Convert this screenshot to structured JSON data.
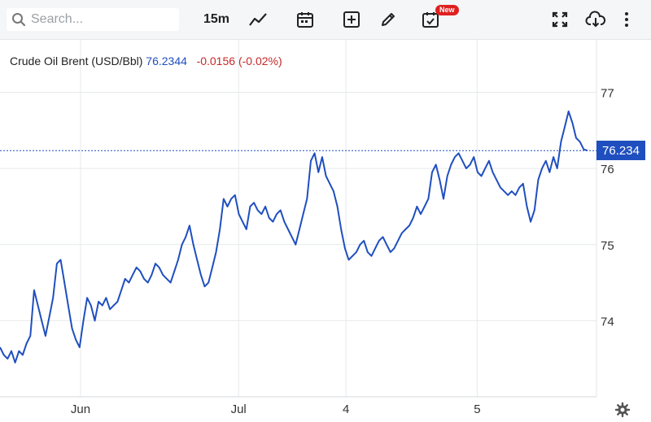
{
  "toolbar": {
    "search_placeholder": "Search...",
    "interval": "15m",
    "new_badge": "New",
    "icons": [
      "search-icon",
      "line-chart-icon",
      "calendar-icon",
      "plus-square-icon",
      "pencil-icon",
      "calendar-check-icon",
      "fullscreen-icon",
      "cloud-download-icon",
      "more-vertical-icon",
      "gear-icon"
    ]
  },
  "legend": {
    "name": "Crude Oil Brent (USD/Bbl)",
    "price": "76.2344",
    "change": "-0.0156",
    "change_pct": "(-0.02%)"
  },
  "price_tag": "76.234",
  "colors": {
    "line": "#1f4fbf",
    "price_tag": "#1f4fbf",
    "negative": "#c62828"
  },
  "chart_data": {
    "type": "line",
    "y_ticks": [
      "77",
      "76",
      "75",
      "74"
    ],
    "x_ticks": [
      "Jun",
      "Jul",
      "4",
      "5"
    ],
    "ylim": [
      73.0,
      77.7
    ],
    "grid": true,
    "series": [
      {
        "values": [
          73.65,
          73.55,
          73.5,
          73.6,
          73.45,
          73.6,
          73.55,
          73.7,
          73.8,
          74.4,
          74.2,
          74.0,
          73.8,
          74.05,
          74.3,
          74.75,
          74.8,
          74.5,
          74.2,
          73.9,
          73.75,
          73.65,
          74.0,
          74.3,
          74.2,
          74.0,
          74.25,
          74.2,
          74.3,
          74.15,
          74.2,
          74.25,
          74.4,
          74.55,
          74.5,
          74.6,
          74.7,
          74.65,
          74.55,
          74.5,
          74.6,
          74.75,
          74.7,
          74.6,
          74.55,
          74.5,
          74.65,
          74.8,
          75.0,
          75.1,
          75.25,
          75.0,
          74.8,
          74.6,
          74.45,
          74.5,
          74.7,
          74.9,
          75.2,
          75.6,
          75.5,
          75.6,
          75.65,
          75.4,
          75.3,
          75.2,
          75.5,
          75.55,
          75.45,
          75.4,
          75.5,
          75.35,
          75.3,
          75.4,
          75.45,
          75.3,
          75.2,
          75.1,
          75.0,
          75.2,
          75.4,
          75.6,
          76.1,
          76.2,
          75.95,
          76.15,
          75.9,
          75.8,
          75.7,
          75.5,
          75.2,
          74.95,
          74.8,
          74.85,
          74.9,
          75.0,
          75.05,
          74.9,
          74.85,
          74.95,
          75.05,
          75.1,
          75.0,
          74.9,
          74.95,
          75.05,
          75.15,
          75.2,
          75.25,
          75.35,
          75.5,
          75.4,
          75.5,
          75.6,
          75.95,
          76.05,
          75.85,
          75.6,
          75.9,
          76.05,
          76.15,
          76.2,
          76.1,
          76.0,
          76.05,
          76.15,
          75.95,
          75.9,
          76.0,
          76.1,
          75.95,
          75.85,
          75.75,
          75.7,
          75.65,
          75.7,
          75.65,
          75.75,
          75.8,
          75.5,
          75.3,
          75.45,
          75.85,
          76.0,
          76.1,
          75.95,
          76.15,
          76.0,
          76.35,
          76.55,
          76.75,
          76.6,
          76.4,
          76.35,
          76.25,
          76.2344
        ]
      }
    ]
  }
}
